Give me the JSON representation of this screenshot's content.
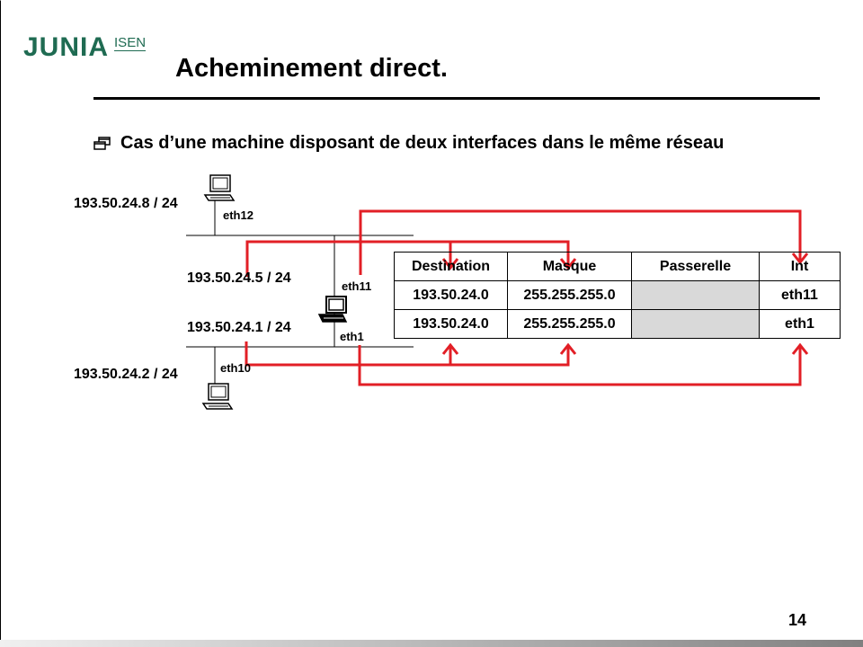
{
  "logo": {
    "brand": "JUNIA",
    "sub": "ISEN"
  },
  "title": "Acheminement direct.",
  "bullet": "Cas d’une machine disposant de deux interfaces dans le même réseau",
  "hosts": {
    "top_ip": "193.50.24.8 / 24",
    "top_iface": "eth12",
    "router_ip_a": "193.50.24.5 / 24",
    "router_iface_a": "eth11",
    "router_ip_b": "193.50.24.1 / 24",
    "router_iface_b": "eth1",
    "bottom_ip": "193.50.24.2 / 24",
    "bottom_iface": "eth10"
  },
  "routing_table": {
    "headers": [
      "Destination",
      "Masque",
      "Passerelle",
      "Int"
    ],
    "rows": [
      [
        "193.50.24.0",
        "255.255.255.0",
        "",
        "eth11"
      ],
      [
        "193.50.24.0",
        "255.255.255.0",
        "",
        "eth1"
      ]
    ]
  },
  "colors": {
    "arrow": "#e21f26",
    "logo": "#1f6b52",
    "gateway_cell": "#d9d9d9"
  },
  "page_number": "14"
}
